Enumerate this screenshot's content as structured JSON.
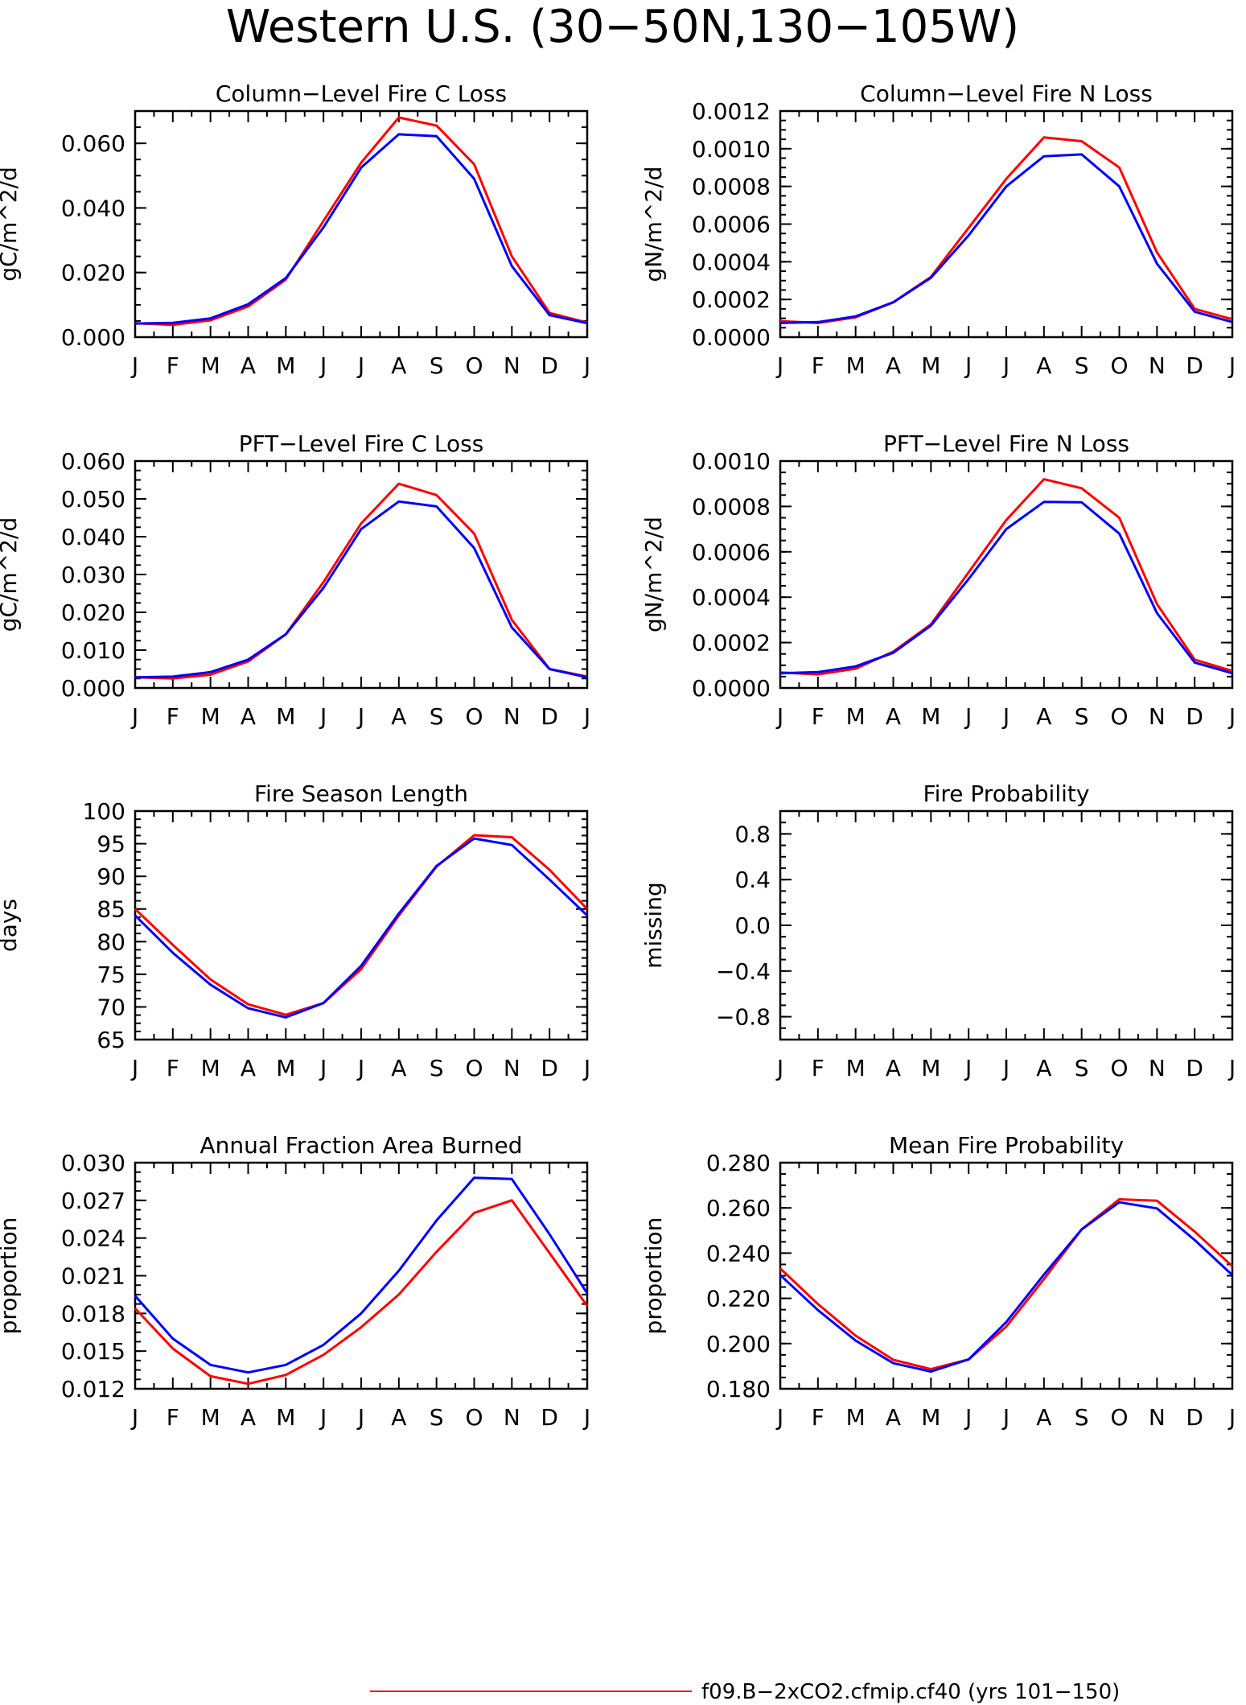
{
  "title": "Western U.S. (30−50N,130−105W)",
  "months": [
    "J",
    "F",
    "M",
    "A",
    "M",
    "J",
    "J",
    "A",
    "S",
    "O",
    "N",
    "D",
    "J"
  ],
  "colors": {
    "red": "#ff0000",
    "blue": "#0000ff"
  },
  "legend": [
    {
      "label": "f09.B−2xCO2.cfmip.cf40 (yrs 101−150)",
      "color": "#ff0000"
    }
  ],
  "chart_data": [
    {
      "type": "line",
      "title": "Column−Level Fire C Loss",
      "ylabel": "gC/m^2/d",
      "ylim": [
        0,
        0.07
      ],
      "yticks": [
        0.0,
        0.02,
        0.04,
        0.06
      ],
      "ytick_labels": [
        "0.000",
        "0.020",
        "0.040",
        "0.060"
      ],
      "series": [
        {
          "color": "#ff0000",
          "values": [
            0.0043,
            0.0038,
            0.0052,
            0.0095,
            0.0178,
            0.036,
            0.054,
            0.068,
            0.0655,
            0.0535,
            0.025,
            0.0075,
            0.0045
          ]
        },
        {
          "color": "#0000ff",
          "values": [
            0.0042,
            0.0044,
            0.0058,
            0.0102,
            0.0183,
            0.034,
            0.0525,
            0.0628,
            0.0622,
            0.049,
            0.022,
            0.0068,
            0.0043
          ]
        }
      ]
    },
    {
      "type": "line",
      "title": "Column−Level Fire N Loss",
      "ylabel": "gN/m^2/d",
      "ylim": [
        0,
        0.0012
      ],
      "yticks": [
        0.0,
        0.0002,
        0.0004,
        0.0006,
        0.0008,
        0.001,
        0.0012
      ],
      "ytick_labels": [
        "0.0000",
        "0.0002",
        "0.0004",
        "0.0006",
        "0.0008",
        "0.0010",
        "0.0012"
      ],
      "series": [
        {
          "color": "#ff0000",
          "values": [
            8.5e-05,
            7.5e-05,
            0.000105,
            0.000185,
            0.00032,
            0.00058,
            0.00084,
            0.00106,
            0.00104,
            0.0009,
            0.00045,
            0.00015,
            9.5e-05
          ]
        },
        {
          "color": "#0000ff",
          "values": [
            7.5e-05,
            8e-05,
            0.00011,
            0.000185,
            0.000315,
            0.00054,
            0.0008,
            0.00096,
            0.00097,
            0.0008,
            0.00039,
            0.000135,
            8e-05
          ]
        }
      ]
    },
    {
      "type": "line",
      "title": "PFT−Level Fire C Loss",
      "ylabel": "gC/m^2/d",
      "ylim": [
        0,
        0.06
      ],
      "yticks": [
        0.0,
        0.01,
        0.02,
        0.03,
        0.04,
        0.05,
        0.06
      ],
      "ytick_labels": [
        "0.000",
        "0.010",
        "0.020",
        "0.030",
        "0.040",
        "0.050",
        "0.060"
      ],
      "series": [
        {
          "color": "#ff0000",
          "values": [
            0.0028,
            0.0025,
            0.0035,
            0.007,
            0.0142,
            0.028,
            0.0435,
            0.054,
            0.051,
            0.0408,
            0.018,
            0.005,
            0.003
          ]
        },
        {
          "color": "#0000ff",
          "values": [
            0.0028,
            0.003,
            0.0042,
            0.0075,
            0.0142,
            0.0265,
            0.042,
            0.0493,
            0.048,
            0.037,
            0.016,
            0.005,
            0.0028
          ]
        }
      ]
    },
    {
      "type": "line",
      "title": "PFT−Level Fire N Loss",
      "ylabel": "gN/m^2/d",
      "ylim": [
        0,
        0.001
      ],
      "yticks": [
        0.0,
        0.0002,
        0.0004,
        0.0006,
        0.0008,
        0.001
      ],
      "ytick_labels": [
        "0.0000",
        "0.0002",
        "0.0004",
        "0.0006",
        "0.0008",
        "0.0010"
      ],
      "series": [
        {
          "color": "#ff0000",
          "values": [
            6.8e-05,
            6e-05,
            8.5e-05,
            0.00016,
            0.00028,
            0.00051,
            0.00074,
            0.00092,
            0.00088,
            0.00075,
            0.00037,
            0.000125,
            7.5e-05
          ]
        },
        {
          "color": "#0000ff",
          "values": [
            6.5e-05,
            7e-05,
            9.5e-05,
            0.000155,
            0.000275,
            0.00048,
            0.0007,
            0.00082,
            0.000818,
            0.00068,
            0.00033,
            0.000112,
            6.5e-05
          ]
        }
      ]
    },
    {
      "type": "line",
      "title": "Fire Season Length",
      "ylabel": "days",
      "ylim": [
        65,
        100
      ],
      "yticks": [
        65,
        70,
        75,
        80,
        85,
        90,
        95,
        100
      ],
      "ytick_labels": [
        "65",
        "70",
        "75",
        "80",
        "85",
        "90",
        "95",
        "100"
      ],
      "series": [
        {
          "color": "#ff0000",
          "values": [
            85.0,
            79.5,
            74.2,
            70.4,
            68.8,
            70.6,
            75.8,
            84.0,
            91.5,
            96.3,
            96.0,
            91.0,
            85.0
          ]
        },
        {
          "color": "#0000ff",
          "values": [
            84.0,
            78.3,
            73.4,
            69.8,
            68.4,
            70.6,
            76.3,
            84.3,
            91.6,
            95.8,
            94.8,
            89.5,
            84.0
          ]
        }
      ]
    },
    {
      "type": "line",
      "title": "Fire Probability",
      "ylabel": "missing",
      "ylim": [
        -1,
        1
      ],
      "yticks": [
        -0.8,
        -0.4,
        0.0,
        0.4,
        0.8
      ],
      "ytick_labels": [
        "−0.8",
        "−0.4",
        "0.0",
        "0.4",
        "0.8"
      ],
      "series": []
    },
    {
      "type": "line",
      "title": "Annual Fraction Area Burned",
      "ylabel": "proportion",
      "ylim": [
        0.012,
        0.03
      ],
      "yticks": [
        0.012,
        0.015,
        0.018,
        0.021,
        0.024,
        0.027,
        0.03
      ],
      "ytick_labels": [
        "0.012",
        "0.015",
        "0.018",
        "0.021",
        "0.024",
        "0.027",
        "0.030"
      ],
      "series": [
        {
          "color": "#ff0000",
          "values": [
            0.0184,
            0.0152,
            0.013,
            0.0124,
            0.0131,
            0.0147,
            0.0169,
            0.0195,
            0.0229,
            0.026,
            0.027,
            0.0228,
            0.0186
          ]
        },
        {
          "color": "#0000ff",
          "values": [
            0.0194,
            0.016,
            0.0139,
            0.0133,
            0.0139,
            0.0155,
            0.018,
            0.0214,
            0.0254,
            0.0288,
            0.0287,
            0.0243,
            0.0196
          ]
        }
      ]
    },
    {
      "type": "line",
      "title": "Mean Fire Probability",
      "ylabel": "proportion",
      "ylim": [
        0.18,
        0.28
      ],
      "yticks": [
        0.18,
        0.2,
        0.22,
        0.24,
        0.26,
        0.28
      ],
      "ytick_labels": [
        "0.180",
        "0.200",
        "0.220",
        "0.240",
        "0.260",
        "0.280"
      ],
      "series": [
        {
          "color": "#ff0000",
          "values": [
            0.2332,
            0.2175,
            0.2035,
            0.1928,
            0.1887,
            0.193,
            0.2075,
            0.2285,
            0.2505,
            0.2638,
            0.2632,
            0.2495,
            0.2342
          ]
        },
        {
          "color": "#0000ff",
          "values": [
            0.2303,
            0.2148,
            0.2013,
            0.1913,
            0.1876,
            0.193,
            0.2095,
            0.2305,
            0.2505,
            0.2625,
            0.2598,
            0.2458,
            0.2303
          ]
        }
      ]
    }
  ]
}
